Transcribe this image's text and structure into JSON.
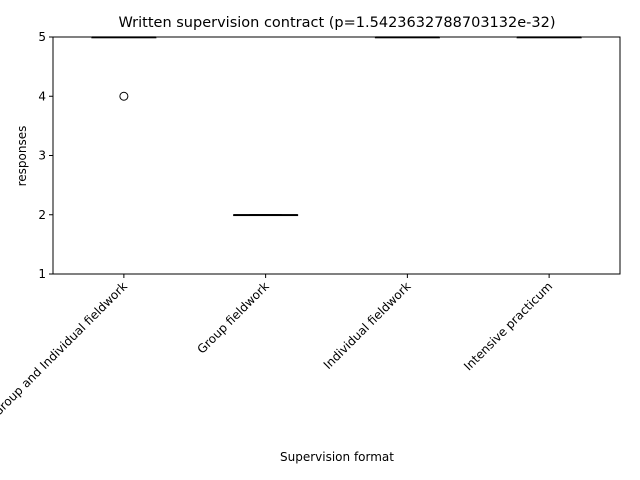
{
  "chart_data": {
    "type": "box",
    "title": "Written supervision contract (p=1.5423632788703132e-32)",
    "xlabel": "Supervision format",
    "ylabel": "responses",
    "ylim": [
      1,
      5
    ],
    "yticks": [
      1,
      2,
      3,
      4,
      5
    ],
    "grid": false,
    "categories": [
      "Group and Individual fieldwork",
      "Group fieldwork",
      "Individual fieldwork",
      "Intensive practicum"
    ],
    "boxes": [
      {
        "category": "Group and Individual fieldwork",
        "q1": 5,
        "median": 5,
        "q3": 5,
        "whisker_low": 5,
        "whisker_high": 5,
        "outliers": [
          4
        ]
      },
      {
        "category": "Group fieldwork",
        "q1": 2,
        "median": 2,
        "q3": 2,
        "whisker_low": 2,
        "whisker_high": 2,
        "outliers": []
      },
      {
        "category": "Individual fieldwork",
        "q1": 5,
        "median": 5,
        "q3": 5,
        "whisker_low": 5,
        "whisker_high": 5,
        "outliers": []
      },
      {
        "category": "Intensive practicum",
        "q1": 5,
        "median": 5,
        "q3": 5,
        "whisker_low": 5,
        "whisker_high": 5,
        "outliers": []
      }
    ]
  }
}
